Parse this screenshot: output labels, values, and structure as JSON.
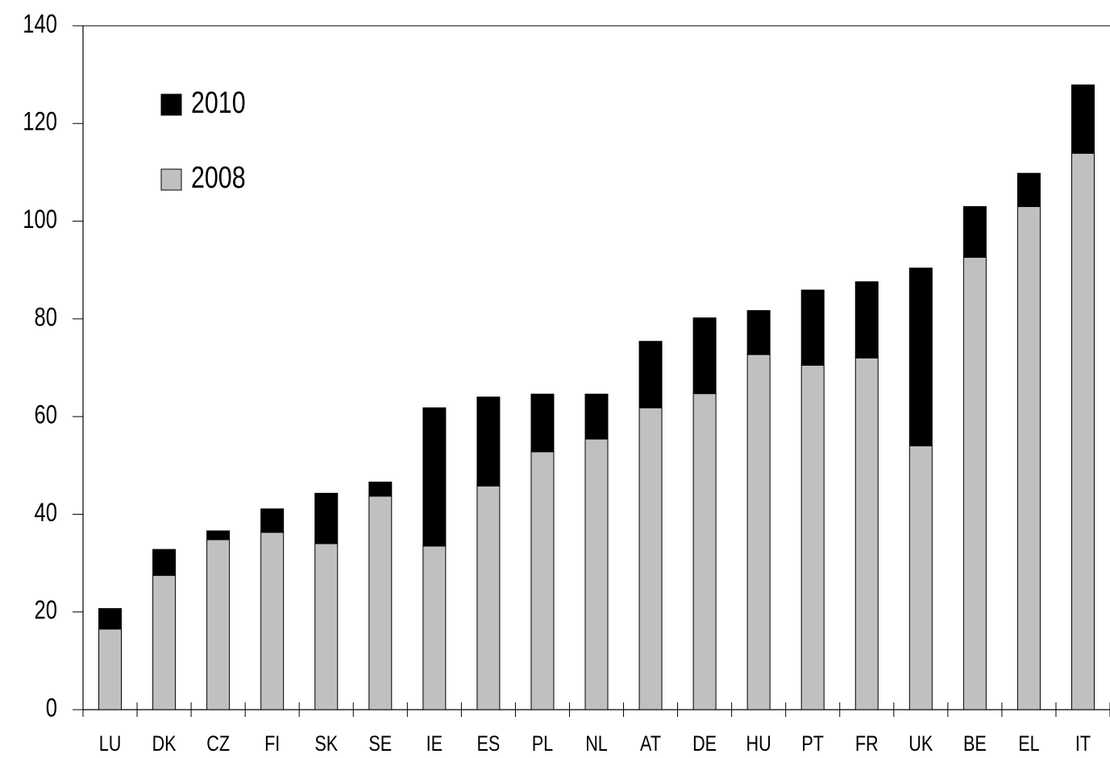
{
  "chart_data": {
    "type": "stacked_bar",
    "categories": [
      "LU",
      "DK",
      "CZ",
      "FI",
      "SK",
      "SE",
      "IE",
      "ES",
      "PL",
      "NL",
      "AT",
      "DE",
      "HU",
      "PT",
      "FR",
      "UK",
      "BE",
      "EL",
      "IT"
    ],
    "series": [
      {
        "name": "2008",
        "color": "#c0c0c0",
        "values": [
          16.5,
          27.5,
          34.8,
          36.3,
          34.0,
          43.7,
          33.5,
          45.8,
          52.8,
          55.4,
          61.8,
          64.7,
          72.7,
          70.5,
          72.0,
          54.0,
          92.6,
          103.0,
          113.9
        ]
      },
      {
        "name": "2010",
        "color": "#000000",
        "values": [
          4.2,
          5.3,
          1.8,
          4.8,
          10.3,
          2.9,
          28.3,
          18.2,
          11.8,
          9.2,
          13.6,
          15.5,
          9.0,
          15.4,
          15.6,
          36.4,
          10.4,
          6.8,
          14.0
        ]
      }
    ],
    "ylim": [
      0,
      140
    ],
    "yticks": [
      0,
      20,
      40,
      60,
      80,
      100,
      120,
      140
    ],
    "legend": "upper left"
  }
}
